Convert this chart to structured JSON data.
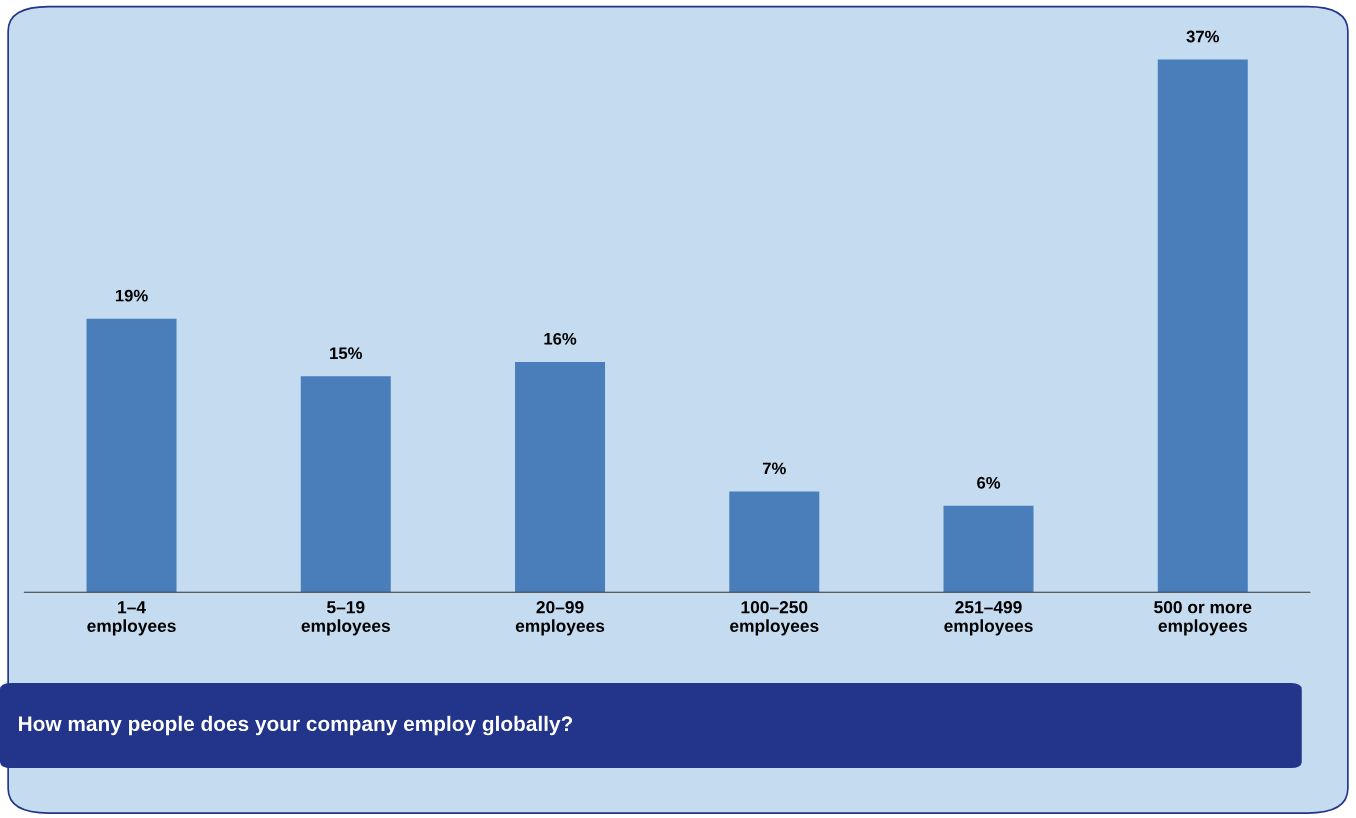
{
  "chart_data": {
    "type": "bar",
    "title": "How many people does your company employ globally?",
    "categories": [
      "1–4\nemployees",
      "5–19\nemployees",
      "20–99\nemployees",
      "100–250\nemployees",
      "251–499\nemployees",
      "500 or more\nemployees"
    ],
    "values": [
      19,
      15,
      16,
      7,
      6,
      37
    ],
    "value_labels": [
      "19%",
      "15%",
      "16%",
      "7%",
      "6%",
      "37%"
    ],
    "color": "#4a7ebb"
  }
}
